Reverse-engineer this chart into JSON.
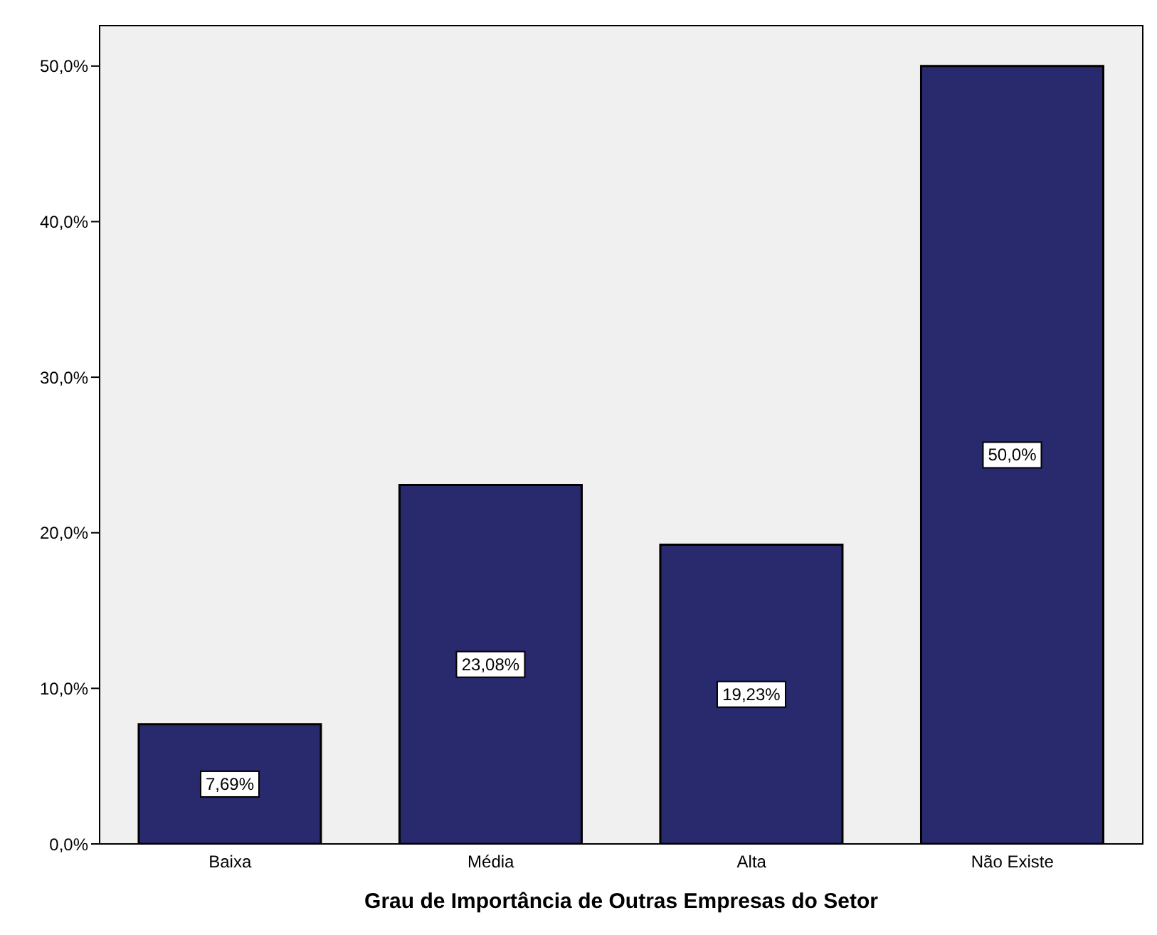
{
  "chart_data": {
    "type": "bar",
    "xlabel": "Grau de Importância de Outras Empresas do Setor",
    "categories": [
      "Baixa",
      "Média",
      "Alta",
      "Não Existe"
    ],
    "values": [
      7.69,
      23.08,
      19.23,
      50.0
    ],
    "value_labels": [
      "7,69%",
      "23,08%",
      "19,23%",
      "50,0%"
    ],
    "color": "#29296e",
    "ylim": [
      0,
      52.6
    ],
    "yticks": [
      {
        "value": 0,
        "label": "0,0%"
      },
      {
        "value": 10,
        "label": "10,0%"
      },
      {
        "value": 20,
        "label": "20,0%"
      },
      {
        "value": 30,
        "label": "30,0%"
      },
      {
        "value": 40,
        "label": "40,0%"
      },
      {
        "value": 50,
        "label": "50,0%"
      }
    ]
  }
}
